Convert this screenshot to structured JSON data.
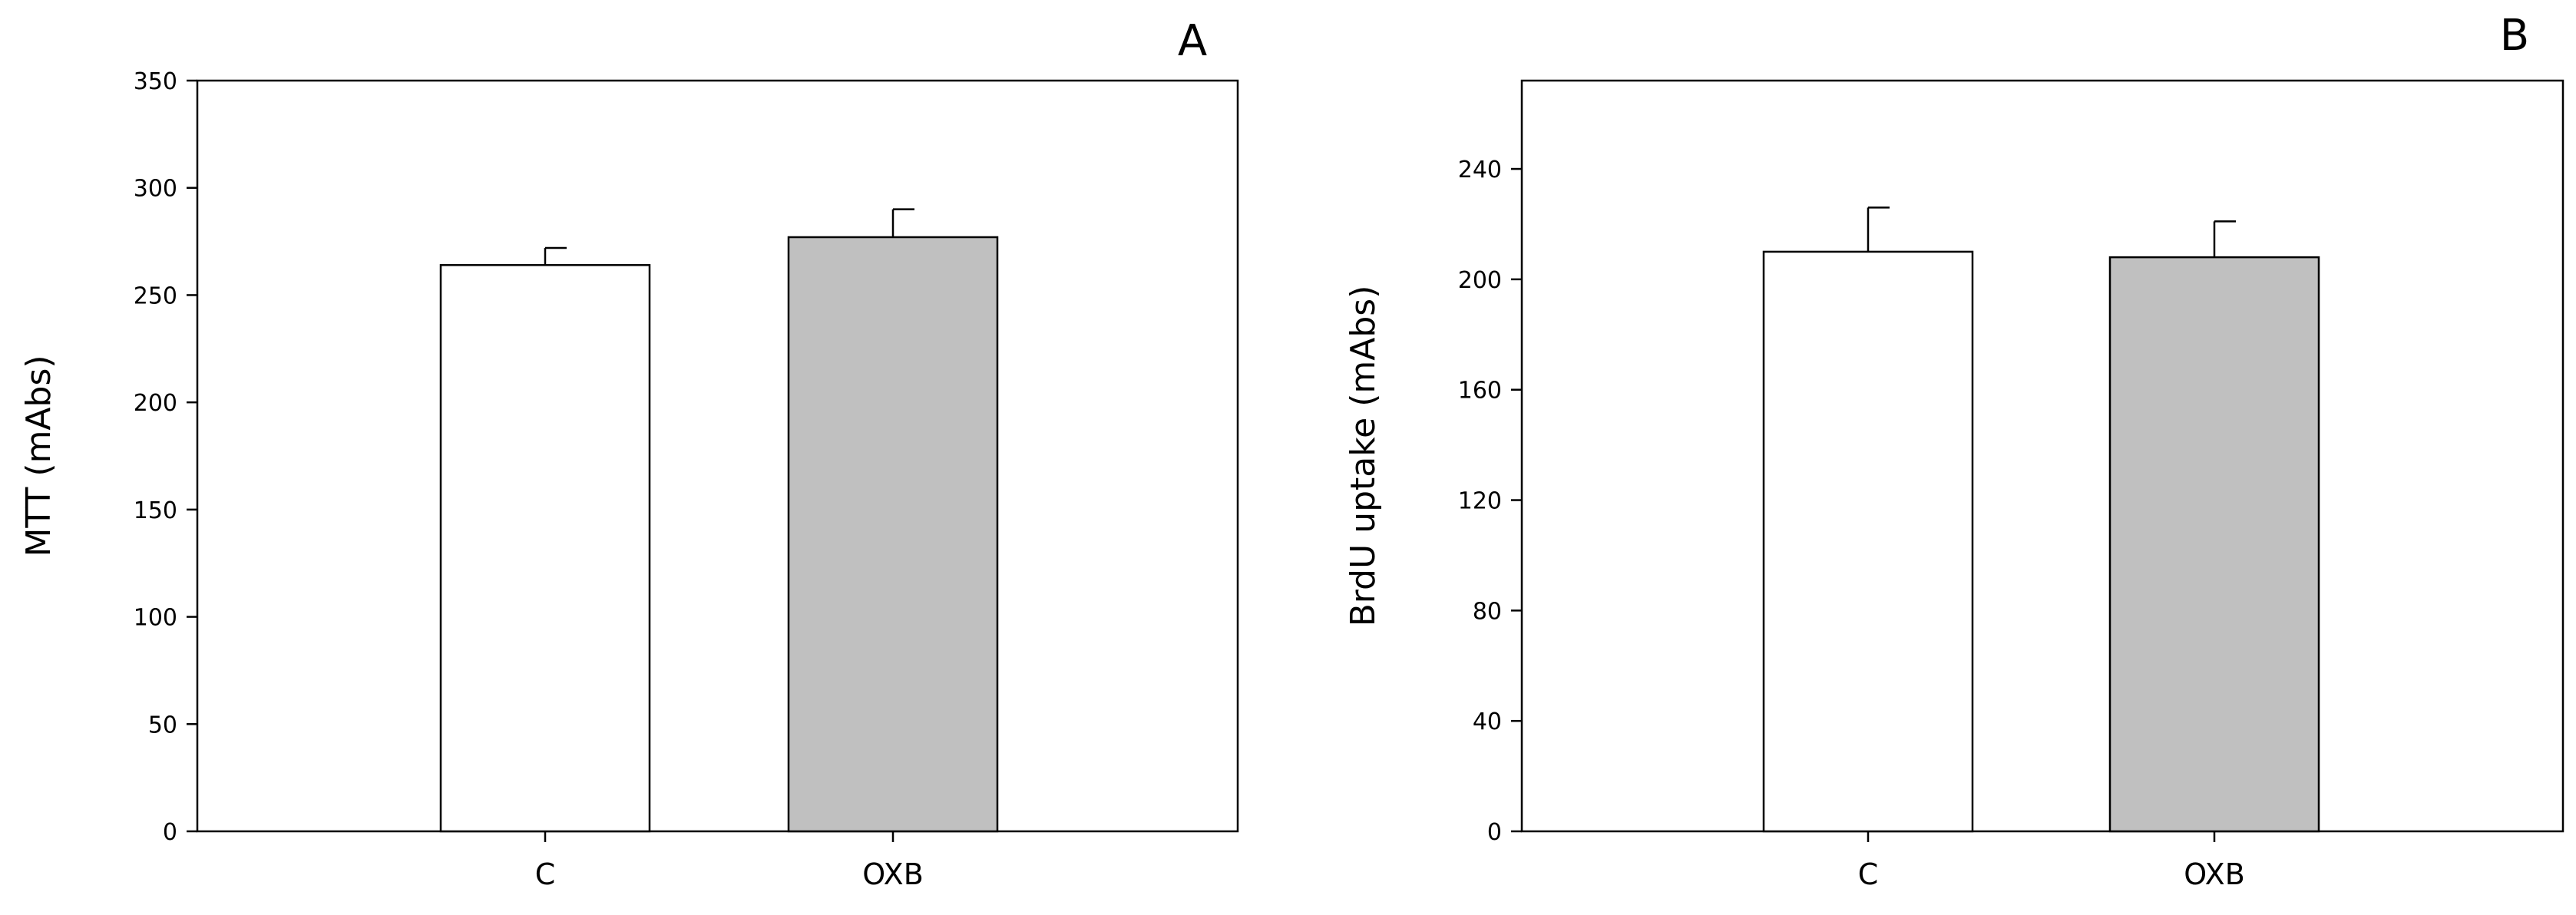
{
  "chart_data": [
    {
      "type": "bar",
      "panel_label": "A",
      "categories": [
        "C",
        "OXB"
      ],
      "values": [
        264,
        277
      ],
      "errors": [
        8,
        13
      ],
      "bar_colors": [
        "#ffffff",
        "#c0c0c0"
      ],
      "xlabel": "",
      "ylabel": "MTT (mAbs)",
      "ylim": [
        0,
        350
      ],
      "yticks": [
        0,
        50,
        100,
        150,
        200,
        250,
        300,
        350
      ],
      "ytick_labels": [
        "0",
        "50",
        "100",
        "150",
        "200",
        "250",
        "300",
        "350"
      ],
      "grid": false
    },
    {
      "type": "bar",
      "panel_label": "B",
      "categories": [
        "C",
        "OXB"
      ],
      "values": [
        210,
        208
      ],
      "errors": [
        16,
        13
      ],
      "bar_colors": [
        "#ffffff",
        "#c0c0c0"
      ],
      "xlabel": "",
      "ylabel": "BrdU uptake (mAbs)",
      "ylim": [
        0,
        272
      ],
      "yticks": [
        0,
        40,
        80,
        120,
        160,
        200,
        240
      ],
      "ytick_labels": [
        "0",
        "40",
        "80",
        "120",
        "160",
        "200",
        "240"
      ],
      "grid": false
    }
  ]
}
